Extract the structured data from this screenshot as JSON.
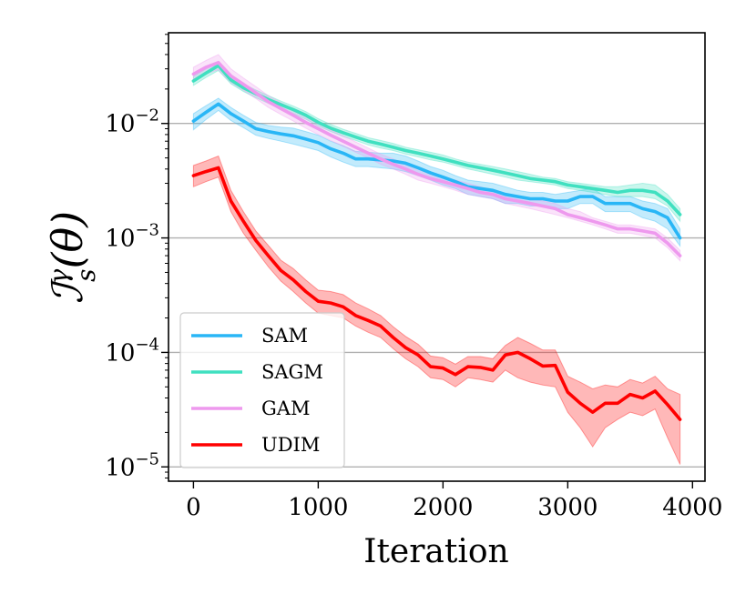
{
  "chart_data": {
    "type": "line",
    "title": "",
    "xlabel": "Iteration",
    "ylabel": "ℐ",
    "ylabel_sup": "γ",
    "ylabel_sub": "s",
    "ylabel_arg": "(θ)",
    "xscale": "linear",
    "yscale": "log",
    "xlim": [
      -200,
      4100
    ],
    "ylim": [
      7.5e-06,
      0.062
    ],
    "xticks": [
      0,
      1000,
      2000,
      3000,
      4000
    ],
    "xtick_labels": [
      "0",
      "1000",
      "2000",
      "3000",
      "4000"
    ],
    "yticks": [
      1e-05,
      0.0001,
      0.001,
      0.01
    ],
    "ytick_base": "10",
    "ytick_exponents": [
      "−5",
      "−4",
      "−3",
      "−2"
    ],
    "grid": "y-major",
    "legend_position": "lower-left",
    "x": [
      0,
      100,
      200,
      300,
      400,
      500,
      600,
      700,
      800,
      900,
      1000,
      1100,
      1200,
      1300,
      1400,
      1500,
      1600,
      1700,
      1800,
      1900,
      2000,
      2100,
      2200,
      2300,
      2400,
      2500,
      2600,
      2700,
      2800,
      2900,
      3000,
      3100,
      3200,
      3300,
      3400,
      3500,
      3600,
      3700,
      3800,
      3900
    ],
    "series": [
      {
        "name": "SAM",
        "color": "#29b6f6",
        "values": [
          0.0105,
          0.0125,
          0.0148,
          0.0122,
          0.0105,
          0.009,
          0.0085,
          0.0081,
          0.0078,
          0.0073,
          0.0068,
          0.006,
          0.0055,
          0.0049,
          0.0049,
          0.0048,
          0.0047,
          0.0045,
          0.0041,
          0.0037,
          0.0034,
          0.0031,
          0.0028,
          0.0027,
          0.0026,
          0.0024,
          0.0023,
          0.0022,
          0.0022,
          0.0021,
          0.0021,
          0.0023,
          0.0023,
          0.002,
          0.002,
          0.002,
          0.0018,
          0.0017,
          0.0015,
          0.001
        ],
        "lower": [
          0.0088,
          0.0108,
          0.013,
          0.0106,
          0.0092,
          0.0079,
          0.0074,
          0.007,
          0.0066,
          0.0062,
          0.0058,
          0.0051,
          0.0046,
          0.0042,
          0.0042,
          0.0041,
          0.004,
          0.0038,
          0.0035,
          0.0032,
          0.0029,
          0.0027,
          0.0024,
          0.0023,
          0.0022,
          0.002,
          0.002,
          0.0019,
          0.0019,
          0.0018,
          0.0018,
          0.002,
          0.002,
          0.0017,
          0.0017,
          0.0017,
          0.0015,
          0.0014,
          0.0012,
          0.00085
        ],
        "upper": [
          0.0122,
          0.0143,
          0.0166,
          0.0138,
          0.0118,
          0.0102,
          0.0096,
          0.0093,
          0.0091,
          0.0085,
          0.0079,
          0.007,
          0.0064,
          0.0057,
          0.0056,
          0.0055,
          0.0055,
          0.0052,
          0.0047,
          0.0042,
          0.0039,
          0.0035,
          0.0032,
          0.0031,
          0.003,
          0.0028,
          0.0026,
          0.0025,
          0.0025,
          0.0024,
          0.0025,
          0.0026,
          0.0027,
          0.0023,
          0.0023,
          0.0023,
          0.0021,
          0.002,
          0.0018,
          0.0012
        ]
      },
      {
        "name": "SAGM",
        "color": "#40e0c0",
        "values": [
          0.0235,
          0.0275,
          0.032,
          0.024,
          0.0205,
          0.0182,
          0.0162,
          0.0146,
          0.0132,
          0.0118,
          0.0102,
          0.0091,
          0.0083,
          0.0076,
          0.007,
          0.0066,
          0.0062,
          0.0058,
          0.0055,
          0.0052,
          0.0049,
          0.0046,
          0.0043,
          0.0041,
          0.0039,
          0.0037,
          0.0035,
          0.0033,
          0.0032,
          0.0031,
          0.0029,
          0.0028,
          0.0027,
          0.0026,
          0.0025,
          0.0026,
          0.0026,
          0.0025,
          0.0021,
          0.0016
        ],
        "lower": [
          0.0215,
          0.0252,
          0.029,
          0.0222,
          0.019,
          0.0168,
          0.015,
          0.0135,
          0.0122,
          0.0109,
          0.0095,
          0.0085,
          0.0077,
          0.0071,
          0.0065,
          0.0061,
          0.0058,
          0.0054,
          0.0051,
          0.0048,
          0.0046,
          0.0043,
          0.004,
          0.0038,
          0.0036,
          0.0034,
          0.0032,
          0.0031,
          0.003,
          0.0029,
          0.0027,
          0.0026,
          0.0025,
          0.0024,
          0.0023,
          0.0023,
          0.0023,
          0.0022,
          0.0019,
          0.0014
        ],
        "upper": [
          0.0258,
          0.03,
          0.035,
          0.026,
          0.0222,
          0.0196,
          0.0175,
          0.0157,
          0.0142,
          0.0127,
          0.011,
          0.0098,
          0.0089,
          0.0082,
          0.0075,
          0.0071,
          0.0067,
          0.0062,
          0.0059,
          0.0056,
          0.0053,
          0.0049,
          0.0046,
          0.0044,
          0.0042,
          0.004,
          0.0038,
          0.0036,
          0.0034,
          0.0033,
          0.0031,
          0.003,
          0.0029,
          0.0028,
          0.0028,
          0.0029,
          0.003,
          0.0029,
          0.0024,
          0.0018
        ]
      },
      {
        "name": "GAM",
        "color": "#ee99ee",
        "values": [
          0.027,
          0.031,
          0.034,
          0.026,
          0.022,
          0.0185,
          0.0155,
          0.0135,
          0.0118,
          0.0102,
          0.009,
          0.0079,
          0.007,
          0.0062,
          0.0055,
          0.0049,
          0.0044,
          0.004,
          0.0036,
          0.0033,
          0.0031,
          0.0029,
          0.0027,
          0.0025,
          0.0024,
          0.0022,
          0.0021,
          0.002,
          0.0019,
          0.0018,
          0.0016,
          0.0015,
          0.0014,
          0.0013,
          0.0012,
          0.0012,
          0.00115,
          0.0011,
          0.0009,
          0.0007
        ],
        "lower": [
          0.0235,
          0.027,
          0.0295,
          0.0228,
          0.0195,
          0.0165,
          0.0138,
          0.012,
          0.0105,
          0.0091,
          0.008,
          0.0071,
          0.0063,
          0.0056,
          0.005,
          0.0044,
          0.004,
          0.0036,
          0.0032,
          0.003,
          0.0028,
          0.0026,
          0.0024,
          0.0023,
          0.0022,
          0.002,
          0.0019,
          0.0018,
          0.0017,
          0.0016,
          0.0015,
          0.0014,
          0.0013,
          0.0012,
          0.0011,
          0.0011,
          0.00105,
          0.001,
          0.00082,
          0.00063
        ],
        "upper": [
          0.031,
          0.0355,
          0.04,
          0.03,
          0.025,
          0.021,
          0.0175,
          0.0152,
          0.0133,
          0.0115,
          0.0101,
          0.0088,
          0.0078,
          0.0069,
          0.0061,
          0.0054,
          0.0049,
          0.0044,
          0.004,
          0.0037,
          0.0034,
          0.0032,
          0.003,
          0.0028,
          0.0026,
          0.0024,
          0.0023,
          0.0022,
          0.0021,
          0.002,
          0.0018,
          0.0017,
          0.0015,
          0.0014,
          0.0013,
          0.0013,
          0.00125,
          0.0012,
          0.001,
          0.00078
        ]
      },
      {
        "name": "UDIM",
        "color": "#ff0000",
        "values": [
          0.0035,
          0.0038,
          0.0041,
          0.0021,
          0.0014,
          0.00095,
          0.0007,
          0.00052,
          0.00043,
          0.00034,
          0.00028,
          0.00027,
          0.00025,
          0.00021,
          0.00019,
          0.00017,
          0.000135,
          0.00011,
          9.5e-05,
          7.5e-05,
          7.3e-05,
          6.4e-05,
          7.5e-05,
          7.4e-05,
          7e-05,
          9.5e-05,
          0.0001,
          8.8e-05,
          7.6e-05,
          7.7e-05,
          4.5e-05,
          3.6e-05,
          3e-05,
          3.6e-05,
          3.6e-05,
          4.3e-05,
          4e-05,
          4.6e-05,
          3.5e-05,
          2.6e-05
        ],
        "lower": [
          0.0028,
          0.0031,
          0.0034,
          0.0017,
          0.0011,
          0.00078,
          0.00056,
          0.00042,
          0.00034,
          0.00027,
          0.00022,
          0.00021,
          0.0002,
          0.00017,
          0.00015,
          0.000135,
          0.000108,
          8.8e-05,
          7.5e-05,
          6e-05,
          5.8e-05,
          5e-05,
          6e-05,
          5.8e-05,
          5.5e-05,
          7e-05,
          6e-05,
          5.5e-05,
          5.2e-05,
          5e-05,
          3e-05,
          2.2e-05,
          1.5e-05,
          2.2e-05,
          2.6e-05,
          3e-05,
          2.8e-05,
          3.2e-05,
          1.8e-05,
          1.05e-05
        ],
        "upper": [
          0.0043,
          0.0047,
          0.0052,
          0.0026,
          0.0017,
          0.00115,
          0.00086,
          0.00064,
          0.00054,
          0.00043,
          0.00035,
          0.00034,
          0.00032,
          0.00027,
          0.00024,
          0.00021,
          0.000168,
          0.000138,
          0.000118,
          9.3e-05,
          9e-05,
          7.9e-05,
          9.2e-05,
          9.2e-05,
          8.8e-05,
          0.000115,
          0.000135,
          0.00012,
          0.000105,
          0.000105,
          6.2e-05,
          5.5e-05,
          4.8e-05,
          5.2e-05,
          5e-05,
          5.8e-05,
          5.4e-05,
          6.2e-05,
          4.8e-05,
          4.3e-05
        ]
      }
    ]
  }
}
